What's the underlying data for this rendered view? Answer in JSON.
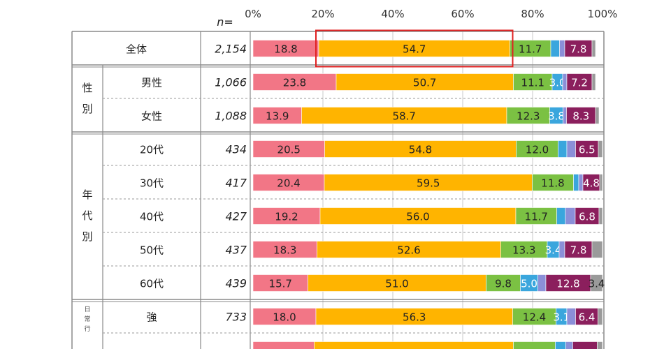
{
  "chart_data": {
    "type": "bar",
    "stacked": true,
    "orientation": "horizontal",
    "n_header": "n=",
    "x_ticks": [
      "0%",
      "20%",
      "40%",
      "60%",
      "80%",
      "100%"
    ],
    "xlim": [
      0,
      100
    ],
    "colors": [
      "#f27686",
      "#ffb400",
      "#7bc143",
      "#3aa6dd",
      "#8b8fd8",
      "#8b1f5d",
      "#9a9a9a"
    ],
    "groups": [
      {
        "label": "",
        "rows": [
          0
        ]
      },
      {
        "label": "性別",
        "rows": [
          1,
          2
        ]
      },
      {
        "label": "年代別",
        "rows": [
          3,
          4,
          5,
          6,
          7
        ]
      },
      {
        "label": "日常行",
        "rows": [
          8,
          9
        ]
      }
    ],
    "rows": [
      {
        "label": "全体",
        "n": "2,154",
        "values": [
          18.8,
          54.7,
          11.7,
          2.5,
          1.5,
          7.8,
          1.0
        ],
        "labels": [
          "18.8",
          "54.7",
          "11.7",
          "",
          "",
          "7.8",
          ""
        ],
        "highlight": 1
      },
      {
        "label": "男性",
        "n": "1,066",
        "values": [
          23.8,
          50.7,
          11.1,
          3.0,
          1.2,
          7.2,
          1.0
        ],
        "labels": [
          "23.8",
          "50.7",
          "11.1",
          "3.0",
          "",
          "7.2",
          ""
        ]
      },
      {
        "label": "女性",
        "n": "1,088",
        "values": [
          13.9,
          58.7,
          12.3,
          3.8,
          1.0,
          8.3,
          1.0
        ],
        "labels": [
          "13.9",
          "58.7",
          "12.3",
          "3.8",
          "",
          "8.3",
          ""
        ]
      },
      {
        "label": "20代",
        "n": "434",
        "values": [
          20.5,
          54.8,
          12.0,
          2.5,
          2.5,
          6.5,
          1.2
        ],
        "labels": [
          "20.5",
          "54.8",
          "12.0",
          "",
          "",
          "6.5",
          ""
        ]
      },
      {
        "label": "30代",
        "n": "417",
        "values": [
          20.4,
          59.5,
          11.8,
          1.5,
          1.2,
          4.8,
          0.8
        ],
        "labels": [
          "20.4",
          "59.5",
          "11.8",
          "",
          "",
          "4.8",
          ""
        ]
      },
      {
        "label": "40代",
        "n": "427",
        "values": [
          19.2,
          56.0,
          11.7,
          2.5,
          2.8,
          6.8,
          1.0
        ],
        "labels": [
          "19.2",
          "56.0",
          "11.7",
          "",
          "",
          "6.8",
          ""
        ]
      },
      {
        "label": "50代",
        "n": "437",
        "values": [
          18.3,
          52.6,
          13.3,
          3.4,
          1.6,
          7.8,
          3.0
        ],
        "labels": [
          "18.3",
          "52.6",
          "13.3",
          "3.4",
          "",
          "7.8",
          ""
        ]
      },
      {
        "label": "60代",
        "n": "439",
        "values": [
          15.7,
          51.0,
          9.8,
          5.0,
          2.3,
          12.8,
          3.4
        ],
        "labels": [
          "15.7",
          "51.0",
          "9.8",
          "5.0",
          "",
          "12.8",
          "3.4"
        ]
      },
      {
        "label": "強",
        "n": "733",
        "values": [
          18.0,
          56.3,
          12.4,
          3.1,
          2.5,
          6.4,
          1.3
        ],
        "labels": [
          "18.0",
          "56.3",
          "12.4",
          "3.1",
          "",
          "6.4",
          ""
        ]
      },
      {
        "label": "",
        "n": "",
        "values": [
          17.5,
          57.0,
          12.0,
          3.0,
          2.0,
          7.0,
          1.5
        ],
        "labels": [
          "",
          "",
          "",
          "",
          "",
          "",
          ""
        ]
      }
    ]
  }
}
